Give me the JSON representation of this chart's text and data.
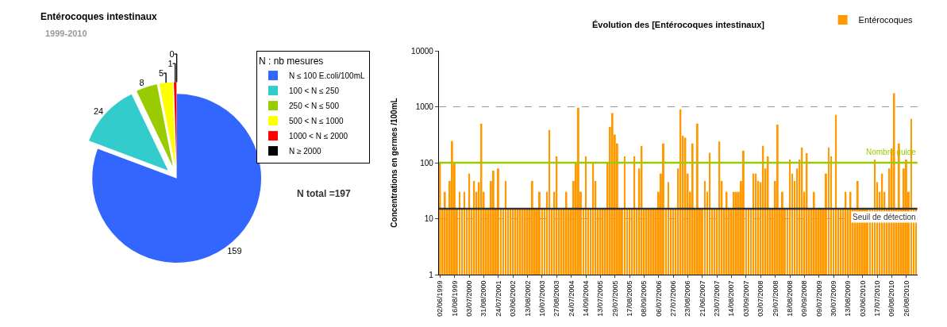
{
  "chart_data": [
    {
      "type": "pie",
      "title": "Entérocoques intestinaux",
      "subtitle": "1999-2010",
      "legend_title": "N : nb mesures",
      "legend": "right",
      "value_labels": [
        "159",
        "24",
        "8",
        "5",
        "1",
        "0"
      ],
      "categories": [
        "N ≤ 100 E.coli/100mL",
        "100 < N ≤ 250",
        "250 < N ≤ 500",
        "500 < N ≤ 1000",
        "1000 < N ≤ 2000",
        "N ≥ 2000"
      ],
      "values": [
        159,
        24,
        8,
        5,
        1,
        0
      ],
      "colors": [
        "#3366ff",
        "#33cccc",
        "#99cc00",
        "#ffff00",
        "#ff0000",
        "#000000"
      ],
      "annotations": [
        "N total =197"
      ]
    },
    {
      "type": "bar",
      "title": "Évolution des [Entérocoques intestinaux]",
      "ylabel": "Concentrations en germes /100mL",
      "legend": "top right",
      "grid": "y",
      "log": "y",
      "ylim": [
        1,
        10000
      ],
      "yticks": [
        1,
        10,
        100,
        1000,
        10000
      ],
      "categories": [
        "02/06/1999",
        null,
        null,
        null,
        null,
        null,
        "16/08/1999",
        null,
        null,
        null,
        null,
        null,
        "03/07/2000",
        null,
        null,
        null,
        null,
        null,
        "31/08/2000",
        null,
        null,
        null,
        null,
        null,
        "24/07/2001",
        null,
        null,
        null,
        null,
        null,
        "03/06/2002",
        null,
        null,
        null,
        null,
        null,
        "13/08/2002",
        null,
        null,
        null,
        null,
        null,
        "10/07/2003",
        null,
        null,
        null,
        null,
        null,
        "27/08/2003",
        null,
        null,
        null,
        null,
        null,
        "24/07/2004",
        null,
        null,
        null,
        null,
        null,
        "14/09/2004",
        null,
        null,
        null,
        null,
        null,
        "13/07/2005",
        null,
        null,
        null,
        null,
        null,
        "29/07/2005",
        null,
        null,
        null,
        null,
        null,
        "17/08/2005",
        null,
        null,
        null,
        null,
        null,
        "08/09/2005",
        null,
        null,
        null,
        null,
        null,
        "06/07/2006",
        null,
        null,
        null,
        null,
        null,
        "27/07/2006",
        null,
        null,
        null,
        null,
        null,
        "23/08/2006",
        null,
        null,
        null,
        null,
        null,
        "21/06/2007",
        null,
        null,
        null,
        null,
        null,
        "23/07/2007",
        null,
        null,
        null,
        null,
        null,
        "14/08/2007",
        null,
        null,
        null,
        null,
        null,
        "03/09/2007",
        null,
        null,
        null,
        null,
        null,
        "03/07/2008",
        null,
        null,
        null,
        null,
        null,
        "29/07/2008",
        null,
        null,
        null,
        null,
        null,
        "18/08/2008",
        null,
        null,
        null,
        null,
        null,
        "09/09/2008",
        null,
        null,
        null,
        null,
        null,
        "09/07/2009",
        null,
        null,
        null,
        null,
        null,
        "30/07/2009",
        null,
        null,
        null,
        null,
        null,
        "13/08/2009",
        null,
        null,
        null,
        null,
        null,
        "03/06/2010",
        null,
        null,
        null,
        null,
        null,
        "17/07/2010",
        null,
        null,
        null,
        null,
        null,
        "09/08/2010",
        null,
        null,
        null,
        null,
        null,
        "26/08/2010",
        null,
        null,
        null,
        null
      ],
      "series": [
        {
          "name": "Entérocoques",
          "color": "#ff9900",
          "values": [
            100,
            15,
            30,
            15,
            47,
            243,
            100,
            15,
            30,
            15,
            30,
            15,
            64,
            15,
            47,
            30,
            45,
            500,
            30,
            15,
            15,
            47,
            72,
            15,
            79,
            15,
            15,
            47,
            15,
            15,
            15,
            15,
            15,
            15,
            15,
            15,
            15,
            15,
            47,
            15,
            15,
            30,
            15,
            15,
            30,
            385,
            15,
            30,
            130,
            15,
            15,
            15,
            30,
            15,
            15,
            47,
            100,
            960,
            30,
            15,
            130,
            15,
            15,
            100,
            47,
            15,
            15,
            15,
            15,
            100,
            440,
            770,
            320,
            220,
            15,
            15,
            130,
            15,
            15,
            15,
            130,
            15,
            79,
            200,
            15,
            15,
            15,
            15,
            15,
            15,
            30,
            64,
            220,
            15,
            45,
            15,
            15,
            15,
            79,
            900,
            300,
            280,
            64,
            30,
            220,
            15,
            500,
            15,
            15,
            47,
            30,
            150,
            15,
            15,
            15,
            240,
            47,
            15,
            30,
            15,
            15,
            30,
            30,
            30,
            47,
            165,
            15,
            15,
            15,
            64,
            64,
            47,
            45,
            200,
            79,
            130,
            15,
            15,
            47,
            480,
            15,
            30,
            15,
            15,
            114,
            64,
            47,
            79,
            114,
            187,
            30,
            148,
            15,
            15,
            30,
            15,
            15,
            15,
            15,
            64,
            187,
            130,
            15,
            716,
            15,
            15,
            15,
            30,
            15,
            30,
            15,
            15,
            47,
            15,
            15,
            15,
            15,
            15,
            15,
            114,
            45,
            30,
            64,
            30,
            15,
            79,
            180,
            1740,
            15,
            220,
            15,
            79,
            114,
            30,
            608,
            15,
            15
          ]
        }
      ],
      "ref_lines": [
        {
          "axis": "y",
          "value": 100,
          "label": "Nombre guide",
          "color": "#99cc00"
        },
        {
          "axis": "y",
          "value": 15,
          "label": "Seuil de détection",
          "color": "#333333"
        }
      ]
    }
  ]
}
